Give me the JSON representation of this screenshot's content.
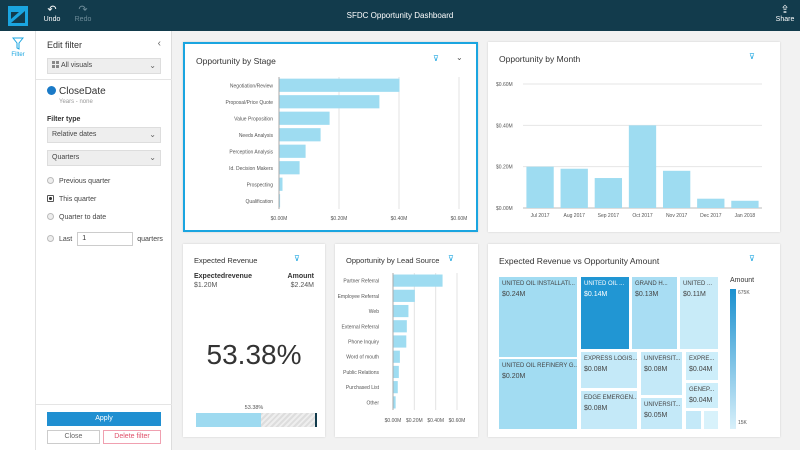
{
  "topbar": {
    "title": "SFDC Opportunity Dashboard",
    "undo": "Undo",
    "redo": "Redo",
    "share": "Share"
  },
  "rail": {
    "filter": "Filter"
  },
  "panel": {
    "title": "Edit filter",
    "scope": "All visuals",
    "field": "CloseDate",
    "field_sub": "Years - none",
    "filter_type_label": "Filter type",
    "filter_type": "Relative dates",
    "period": "Quarters",
    "options": [
      {
        "label": "Previous quarter",
        "selected": false
      },
      {
        "label": "This quarter",
        "selected": true
      },
      {
        "label": "Quarter to date",
        "selected": false
      },
      {
        "label": "Last",
        "selected": false
      }
    ],
    "last_value": "1",
    "last_unit": "quarters",
    "apply": "Apply",
    "close": "Close",
    "delete": "Delete filter"
  },
  "kpi": {
    "title": "Expected Revenue",
    "h1": "Expectedrevenue",
    "v1": "$1.20M",
    "h2": "Amount",
    "v2": "$2.24M",
    "big": "53.38%",
    "progress_label": "53.38%",
    "progress": 0.5338
  },
  "treemap": {
    "title": "Expected Revenue vs Opportunity Amount",
    "legend_title": "Amount",
    "legend_max": "675K",
    "legend_min": "15K",
    "cells": [
      {
        "label": "UNITED OIL INSTALLATI...",
        "value": "$0.24M"
      },
      {
        "label": "UNITED OIL REFINERY G...",
        "value": "$0.20M"
      },
      {
        "label": "UNITED OIL ...",
        "value": "$0.14M"
      },
      {
        "label": "GRAND H...",
        "value": "$0.13M"
      },
      {
        "label": "UNITED ...",
        "value": "$0.11M"
      },
      {
        "label": "EXPRESS LOGIS...",
        "value": "$0.08M"
      },
      {
        "label": "EDGE EMERGEN...",
        "value": "$0.08M"
      },
      {
        "label": "UNIVERSIT...",
        "value": "$0.08M"
      },
      {
        "label": "UNIVERSIT...",
        "value": "$0.05M"
      },
      {
        "label": "EXPRE...",
        "value": "$0.04M"
      },
      {
        "label": "GENEP...",
        "value": "$0.04M"
      },
      {
        "label": "",
        "value": ""
      },
      {
        "label": "",
        "value": ""
      }
    ]
  },
  "chart_data": [
    {
      "type": "bar",
      "orientation": "horizontal",
      "title": "Opportunity by Stage",
      "categories": [
        "Negotiation/Review",
        "Proposal/Price Quote",
        "Value Proposition",
        "Needs Analysis",
        "Perception Analysis",
        "Id. Decision Makers",
        "Prospecting",
        "Qualification"
      ],
      "values": [
        0.4,
        0.333,
        0.167,
        0.137,
        0.087,
        0.067,
        0.01,
        0.002
      ],
      "ticks": [
        "$0.00M",
        "$0.20M",
        "$0.40M",
        "$0.60M"
      ],
      "xlim": [
        0,
        0.6
      ],
      "grid": true
    },
    {
      "type": "bar",
      "title": "Opportunity by Month",
      "categories": [
        "Jul 2017",
        "Aug 2017",
        "Sep 2017",
        "Oct 2017",
        "Nov 2017",
        "Dec 2017",
        "Jan 2018"
      ],
      "values": [
        0.2,
        0.19,
        0.145,
        0.4,
        0.18,
        0.045,
        0.035
      ],
      "ticks": [
        "$0.00M",
        "$0.20M",
        "$0.40M",
        "$0.60M"
      ],
      "ylim": [
        0,
        0.6
      ],
      "grid": true
    },
    {
      "type": "bar",
      "orientation": "horizontal",
      "title": "Opportunity by Lead Source",
      "categories": [
        "Partner Referral",
        "Employee Referral",
        "Web",
        "External Referral",
        "Phone Inquiry",
        "Word of mouth",
        "Public Relations",
        "Purchased List",
        "Other"
      ],
      "values": [
        0.46,
        0.2,
        0.14,
        0.125,
        0.12,
        0.06,
        0.05,
        0.04,
        0.02
      ],
      "ticks": [
        "$0.00M",
        "$0.20M",
        "$0.40M",
        "$0.60M"
      ],
      "xlim": [
        0,
        0.6
      ],
      "grid": true
    }
  ]
}
